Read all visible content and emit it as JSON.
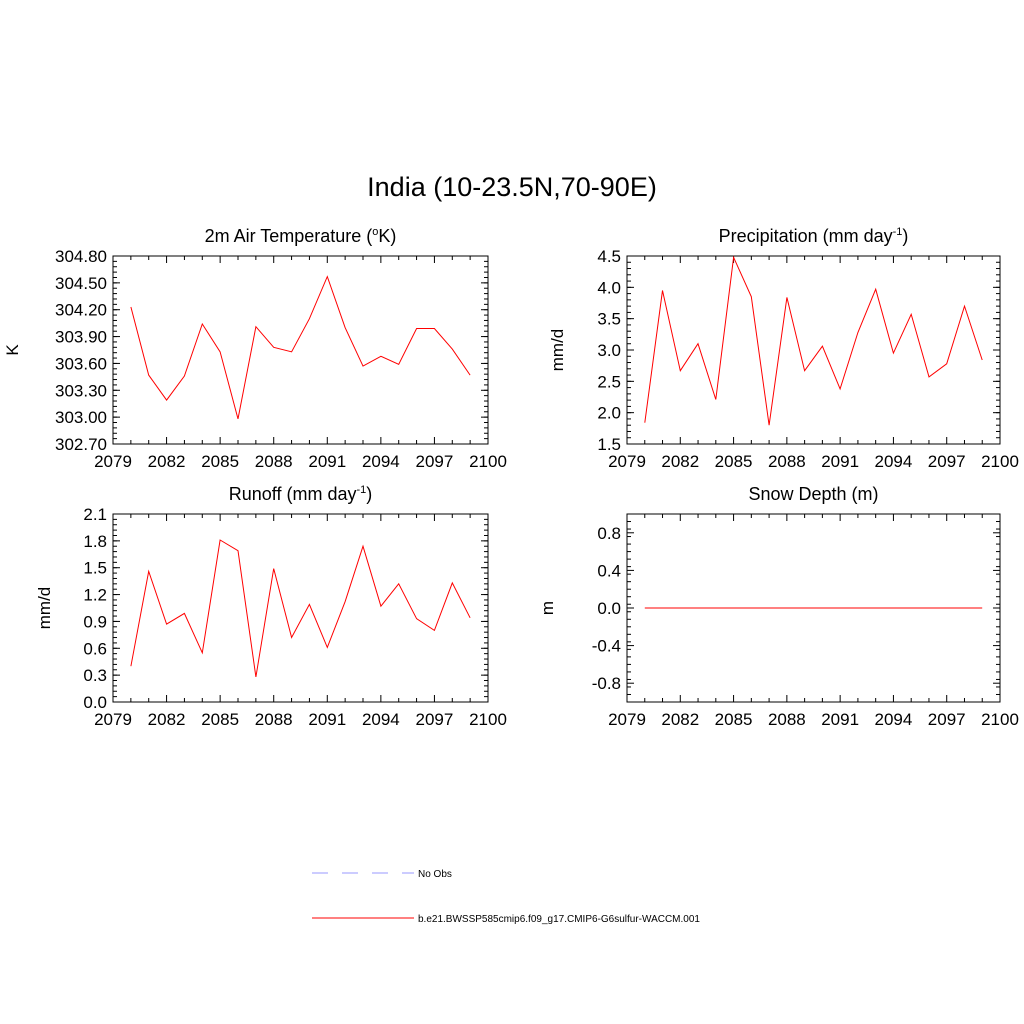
{
  "figure": {
    "title": "India (10-23.5N,70-90E)"
  },
  "colors": {
    "model_line": "#ff0000",
    "obs_line": "#9999ff",
    "axis": "#000000"
  },
  "legend": {
    "entries": [
      {
        "label": "No Obs",
        "style": "dashed",
        "color": "#9999ff"
      },
      {
        "label": "b.e21.BWSSP585cmip6.f09_g17.CMIP6-G6sulfur-WACCM.001",
        "style": "solid",
        "color": "#ff0000"
      }
    ]
  },
  "chart_data": [
    {
      "type": "line",
      "title": "2m Air Temperature (",
      "title_sup": "o",
      "title_after": "K)",
      "ylabel": "K",
      "xlim": [
        2079,
        2100
      ],
      "xticks": [
        2079,
        2082,
        2085,
        2088,
        2091,
        2094,
        2097,
        2100
      ],
      "ylim": [
        302.7,
        304.8
      ],
      "yticks": [
        "302.70",
        "303.00",
        "303.30",
        "303.60",
        "303.90",
        "304.20",
        "304.50",
        "304.80"
      ],
      "x": [
        2080,
        2081,
        2082,
        2083,
        2084,
        2085,
        2086,
        2087,
        2088,
        2089,
        2090,
        2091,
        2092,
        2093,
        2094,
        2095,
        2096,
        2097,
        2098,
        2099
      ],
      "series": [
        {
          "name": "b.e21.BWSSP585cmip6.f09_g17.CMIP6-G6sulfur-WACCM.001",
          "values": [
            304.23,
            303.47,
            303.19,
            303.46,
            304.04,
            303.73,
            302.98,
            304.01,
            303.78,
            303.73,
            304.1,
            304.57,
            304.0,
            303.57,
            303.68,
            303.59,
            303.99,
            303.99,
            303.76,
            303.47
          ]
        }
      ]
    },
    {
      "type": "line",
      "title": "Precipitation (mm day",
      "title_sup": "-1",
      "title_after": ")",
      "ylabel": "mm/d",
      "xlim": [
        2079,
        2100
      ],
      "xticks": [
        2079,
        2082,
        2085,
        2088,
        2091,
        2094,
        2097,
        2100
      ],
      "ylim": [
        1.5,
        4.5
      ],
      "yticks": [
        "1.5",
        "2.0",
        "2.5",
        "3.0",
        "3.5",
        "4.0",
        "4.5"
      ],
      "x": [
        2080,
        2081,
        2082,
        2083,
        2084,
        2085,
        2086,
        2087,
        2088,
        2089,
        2090,
        2091,
        2092,
        2093,
        2094,
        2095,
        2096,
        2097,
        2098,
        2099
      ],
      "series": [
        {
          "name": "b.e21.BWSSP585cmip6.f09_g17.CMIP6-G6sulfur-WACCM.001",
          "values": [
            1.84,
            3.95,
            2.67,
            3.1,
            2.21,
            4.48,
            3.85,
            1.8,
            3.84,
            2.67,
            3.06,
            2.38,
            3.28,
            3.97,
            2.95,
            3.57,
            2.57,
            2.78,
            3.7,
            2.84
          ]
        }
      ]
    },
    {
      "type": "line",
      "title": "Runoff (mm day",
      "title_sup": "-1",
      "title_after": ")",
      "ylabel": "mm/d",
      "xlim": [
        2079,
        2100
      ],
      "xticks": [
        2079,
        2082,
        2085,
        2088,
        2091,
        2094,
        2097,
        2100
      ],
      "ylim": [
        0.0,
        2.1
      ],
      "yticks": [
        "0.0",
        "0.3",
        "0.6",
        "0.9",
        "1.2",
        "1.5",
        "1.8",
        "2.1"
      ],
      "x": [
        2080,
        2081,
        2082,
        2083,
        2084,
        2085,
        2086,
        2087,
        2088,
        2089,
        2090,
        2091,
        2092,
        2093,
        2094,
        2095,
        2096,
        2097,
        2098,
        2099
      ],
      "series": [
        {
          "name": "b.e21.BWSSP585cmip6.f09_g17.CMIP6-G6sulfur-WACCM.001",
          "values": [
            0.4,
            1.46,
            0.87,
            0.99,
            0.55,
            1.81,
            1.69,
            0.28,
            1.49,
            0.72,
            1.09,
            0.61,
            1.12,
            1.74,
            1.07,
            1.32,
            0.93,
            0.8,
            1.33,
            0.94
          ]
        }
      ]
    },
    {
      "type": "line",
      "title": "Snow Depth (m)",
      "title_sup": "",
      "title_after": "",
      "ylabel": "m",
      "xlim": [
        2079,
        2100
      ],
      "xticks": [
        2079,
        2082,
        2085,
        2088,
        2091,
        2094,
        2097,
        2100
      ],
      "ylim": [
        -1.0,
        1.0
      ],
      "yticks": [
        "-0.8",
        "-0.4",
        "0.0",
        "0.4",
        "0.8"
      ],
      "ytick_values": [
        -0.8,
        -0.4,
        0.0,
        0.4,
        0.8
      ],
      "x": [
        2080,
        2081,
        2082,
        2083,
        2084,
        2085,
        2086,
        2087,
        2088,
        2089,
        2090,
        2091,
        2092,
        2093,
        2094,
        2095,
        2096,
        2097,
        2098,
        2099
      ],
      "series": [
        {
          "name": "b.e21.BWSSP585cmip6.f09_g17.CMIP6-G6sulfur-WACCM.001",
          "values": [
            0,
            0,
            0,
            0,
            0,
            0,
            0,
            0,
            0,
            0,
            0,
            0,
            0,
            0,
            0,
            0,
            0,
            0,
            0,
            0
          ]
        }
      ]
    }
  ]
}
